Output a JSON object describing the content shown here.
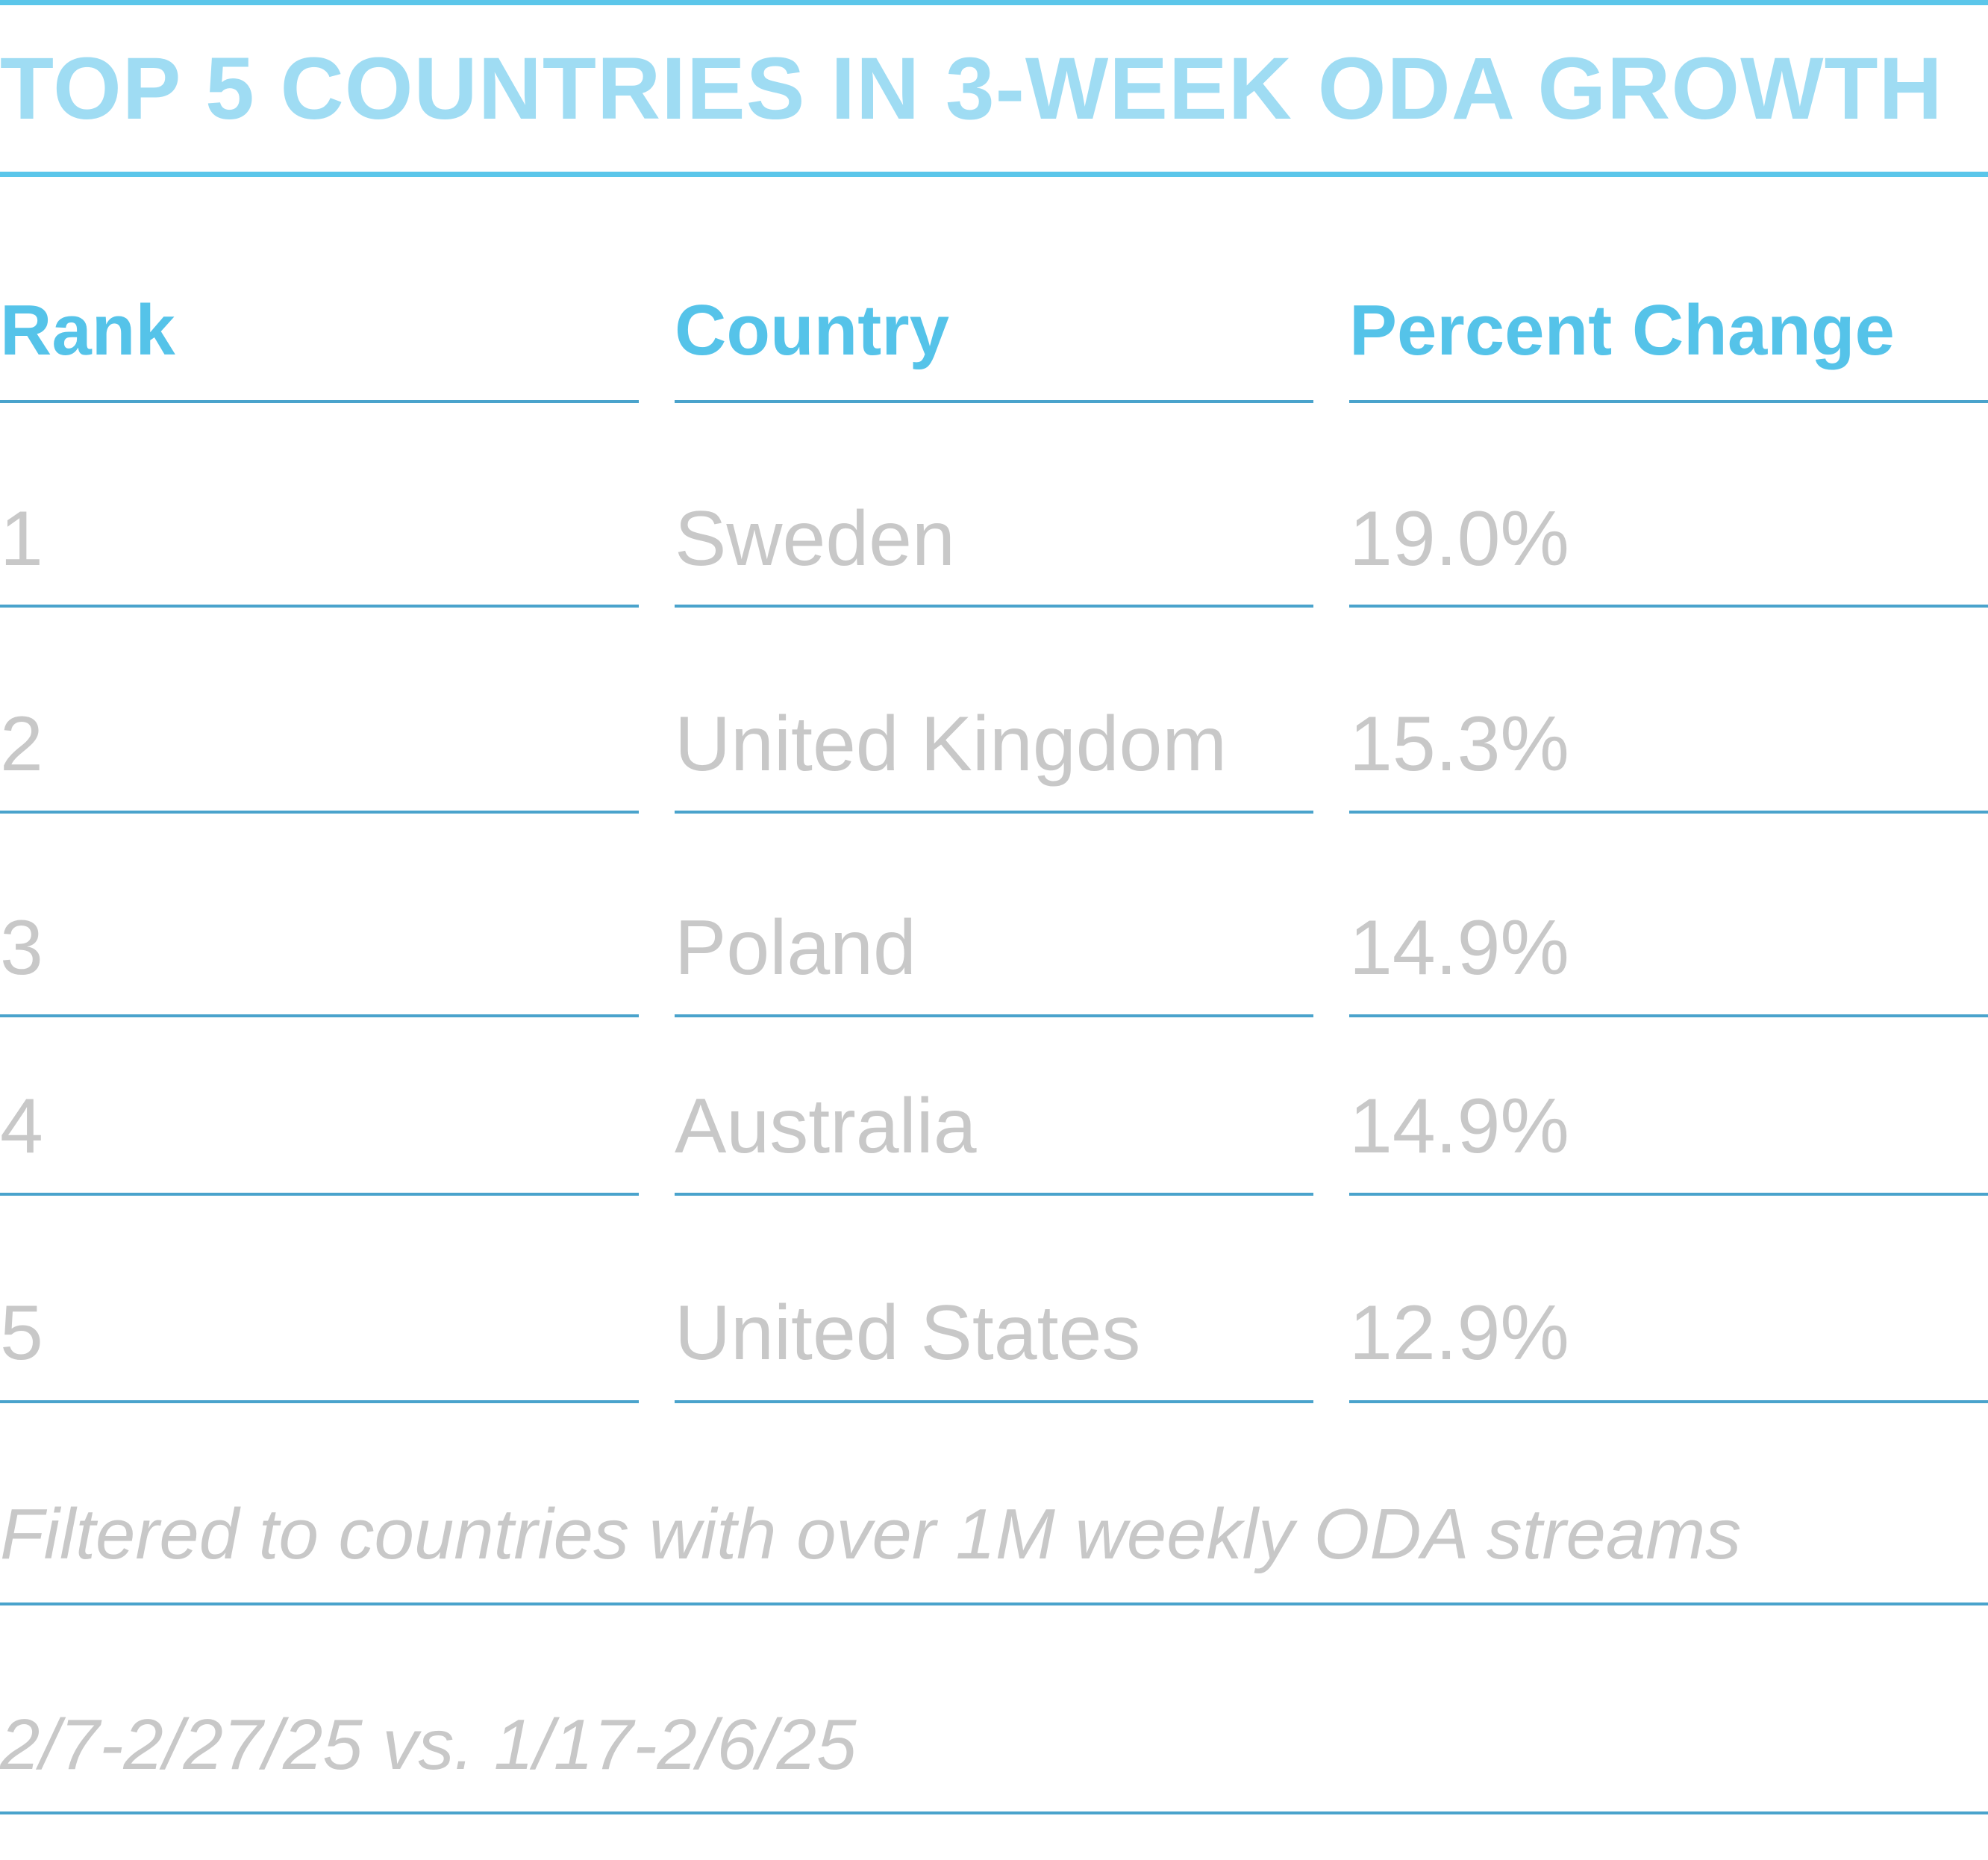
{
  "colors": {
    "title": "#9fdcf3",
    "header": "#55c3e9",
    "rule": "#4aa3cc",
    "accent_rule": "#5bc6ea",
    "values": "#c8c8c8"
  },
  "chart_data": {
    "type": "table",
    "title": "TOP 5 COUNTRIES IN 3-WEEK ODA GROWTH",
    "columns": [
      "Rank",
      "Country",
      "Percent Change"
    ],
    "rows": [
      [
        "1",
        "Sweden",
        "19.0%"
      ],
      [
        "2",
        "United Kingdom",
        "15.3%"
      ],
      [
        "3",
        "Poland",
        "14.9%"
      ],
      [
        "4",
        "Australia",
        "14.9%"
      ],
      [
        "5",
        "United States",
        "12.9%"
      ]
    ],
    "values": [
      19.0,
      15.3,
      14.9,
      14.9,
      12.9
    ],
    "notes": [
      "Filtered to countries with over 1M weekly ODA streams",
      "2/7-2/27/25 vs. 1/17-2/6/25"
    ]
  }
}
